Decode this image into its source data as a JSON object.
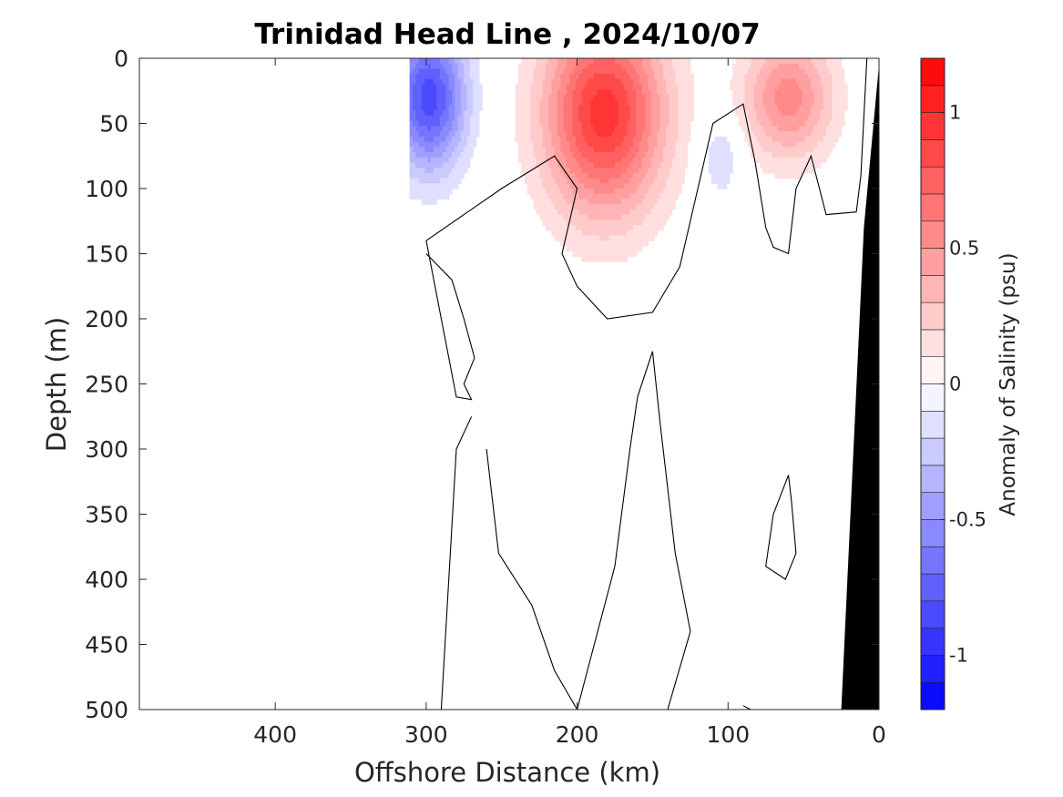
{
  "chart_data": {
    "type": "heatmap",
    "title": "Trinidad Head Line , 2024/10/07",
    "xlabel": "Offshore Distance (km)",
    "ylabel": "Depth (m)",
    "xlim": [
      490,
      0
    ],
    "ylim": [
      0,
      500
    ],
    "x_ticks": [
      400,
      300,
      200,
      100,
      0
    ],
    "y_ticks": [
      0,
      50,
      100,
      150,
      200,
      250,
      300,
      350,
      400,
      450,
      500
    ],
    "colorbar": {
      "label": "Anomaly of Salinity (psu)",
      "range": [
        -1.2,
        1.2
      ],
      "levels": 24,
      "ticks": [
        -1,
        -0.5,
        0,
        0.5,
        1
      ],
      "tick_labels": [
        "-1",
        "-0.5",
        "0",
        "0.5",
        "1"
      ],
      "low_color": "#0000ff",
      "high_color": "#ff0000",
      "mid_color": "#ffffff"
    },
    "data_coverage": {
      "x_start_km": 311,
      "x_end_km": 0
    },
    "anomaly_features": [
      {
        "kind": "negative",
        "x": [
          311,
          250
        ],
        "depth": [
          0,
          140
        ],
        "peak_value": -0.85,
        "center": [
          298,
          30
        ]
      },
      {
        "kind": "positive",
        "x": [
          240,
          140
        ],
        "depth": [
          0,
          195
        ],
        "peak_value": 0.95,
        "center": [
          182,
          42
        ]
      },
      {
        "kind": "positive",
        "x": [
          95,
          20
        ],
        "depth": [
          0,
          120
        ],
        "peak_value": 0.55,
        "center": [
          60,
          30
        ]
      },
      {
        "kind": "negative",
        "x": [
          120,
          85
        ],
        "depth": [
          60,
          145
        ],
        "peak_value": -0.2,
        "center": [
          105,
          75
        ]
      },
      {
        "kind": "negative",
        "x": [
          240,
          215
        ],
        "depth": [
          310,
          375
        ],
        "peak_value": -0.1,
        "center": [
          225,
          345
        ]
      },
      {
        "kind": "negative",
        "x": [
          45,
          25
        ],
        "depth": [
          150,
          230
        ],
        "peak_value": -0.1,
        "center": [
          38,
          190
        ]
      }
    ],
    "zero_contours": [
      {
        "points": [
          [
            300,
            150
          ],
          [
            283,
            170
          ],
          [
            275,
            200
          ],
          [
            268,
            230
          ],
          [
            275,
            250
          ],
          [
            270,
            262
          ],
          [
            280,
            260
          ],
          [
            300,
            140
          ],
          [
            250,
            100
          ],
          [
            215,
            75
          ],
          [
            200,
            100
          ],
          [
            210,
            150
          ],
          [
            200,
            175
          ],
          [
            180,
            200
          ],
          [
            150,
            195
          ],
          [
            132,
            160
          ],
          [
            124,
            120
          ],
          [
            110,
            50
          ],
          [
            90,
            35
          ],
          [
            82,
            80
          ],
          [
            75,
            130
          ],
          [
            70,
            145
          ],
          [
            60,
            150
          ],
          [
            55,
            100
          ],
          [
            45,
            75
          ],
          [
            35,
            120
          ],
          [
            15,
            118
          ],
          [
            12,
            90
          ],
          [
            8,
            0
          ]
        ]
      },
      {
        "points": [
          [
            270,
            275
          ],
          [
            280,
            300
          ],
          [
            285,
            400
          ],
          [
            290,
            500
          ]
        ]
      },
      {
        "points": [
          [
            260,
            300
          ],
          [
            252,
            380
          ],
          [
            230,
            420
          ],
          [
            215,
            470
          ],
          [
            200,
            500
          ]
        ]
      },
      {
        "points": [
          [
            150,
            225
          ],
          [
            160,
            260
          ],
          [
            165,
            300
          ],
          [
            175,
            390
          ],
          [
            200,
            500
          ]
        ]
      },
      {
        "points": [
          [
            150,
            225
          ],
          [
            145,
            280
          ],
          [
            135,
            380
          ],
          [
            125,
            440
          ],
          [
            140,
            500
          ]
        ]
      },
      {
        "points": [
          [
            60,
            320
          ],
          [
            70,
            350
          ],
          [
            75,
            390
          ],
          [
            62,
            400
          ],
          [
            55,
            380
          ],
          [
            58,
            340
          ],
          [
            60,
            320
          ]
        ]
      },
      {
        "points": [
          [
            90,
            497
          ],
          [
            85,
            500
          ]
        ]
      }
    ],
    "bathymetry": {
      "color": "#000000",
      "seafloor": [
        [
          0,
          5
        ],
        [
          10,
          130
        ],
        [
          25,
          500
        ]
      ]
    }
  }
}
